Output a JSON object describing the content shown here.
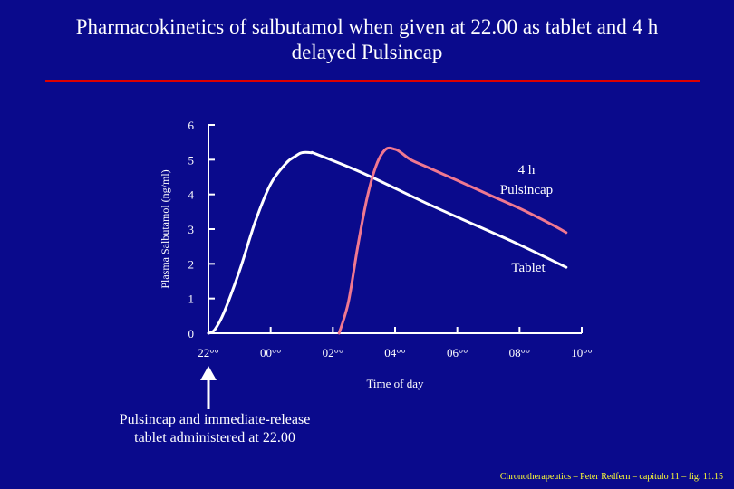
{
  "colors": {
    "background": "#0a0a8c",
    "text": "#ffffff",
    "rule": "#dd0000",
    "tablet_series": "#ffffff",
    "pulsincap_series": "#f07890",
    "credit": "#ffff33"
  },
  "title": {
    "line1": "Pharmacokinetics of salbutamol when given at 22.00 as tablet and 4 h",
    "line2": "delayed Pulsincap"
  },
  "annotation": {
    "line1": "Pulsincap and immediate-release",
    "line2": "tablet administered at 22.00"
  },
  "credit": "Chronotherapeutics – Peter Redfern – capitulo 11 – fig. 11.15",
  "chart_data": {
    "type": "line",
    "title": "Pharmacokinetics of salbutamol when given at 22.00 as tablet and 4 h delayed Pulsincap",
    "xlabel": "Time of day",
    "ylabel": "Plasma Salbutamol (ng/ml)",
    "xlim": [
      0,
      12
    ],
    "ylim": [
      0,
      6
    ],
    "x_ticks": [
      0,
      2,
      4,
      6,
      8,
      10,
      12
    ],
    "x_tick_labels": [
      "22°°",
      "00°°",
      "02°°",
      "04°°",
      "06°°",
      "08°°",
      "10°°"
    ],
    "y_ticks": [
      0,
      1,
      2,
      3,
      4,
      5,
      6
    ],
    "y_tick_labels": [
      "0",
      "1",
      "2",
      "3",
      "4",
      "5",
      "6"
    ],
    "grid": false,
    "series": [
      {
        "name": "Tablet",
        "label": "Tablet",
        "color": "#ffffff",
        "x": [
          0,
          0.2,
          0.5,
          1,
          1.5,
          2,
          2.5,
          2.8,
          3,
          3.3,
          3.5,
          5,
          7,
          9,
          10,
          11.5
        ],
        "y": [
          0,
          0.1,
          0.6,
          1.8,
          3.2,
          4.3,
          4.9,
          5.1,
          5.2,
          5.2,
          5.15,
          4.6,
          3.75,
          2.95,
          2.55,
          1.9
        ]
      },
      {
        "name": "4 h Pulsincap",
        "label_line1": "4 h",
        "label_line2": "Pulsincap",
        "color": "#f07890",
        "x": [
          4.2,
          4.5,
          4.8,
          5.1,
          5.4,
          5.7,
          6,
          6.2,
          6.5,
          7,
          8,
          9,
          10,
          11,
          11.5
        ],
        "y": [
          0,
          0.9,
          2.5,
          3.9,
          4.85,
          5.3,
          5.3,
          5.2,
          5.0,
          4.8,
          4.4,
          4.0,
          3.6,
          3.15,
          2.9
        ]
      }
    ]
  }
}
